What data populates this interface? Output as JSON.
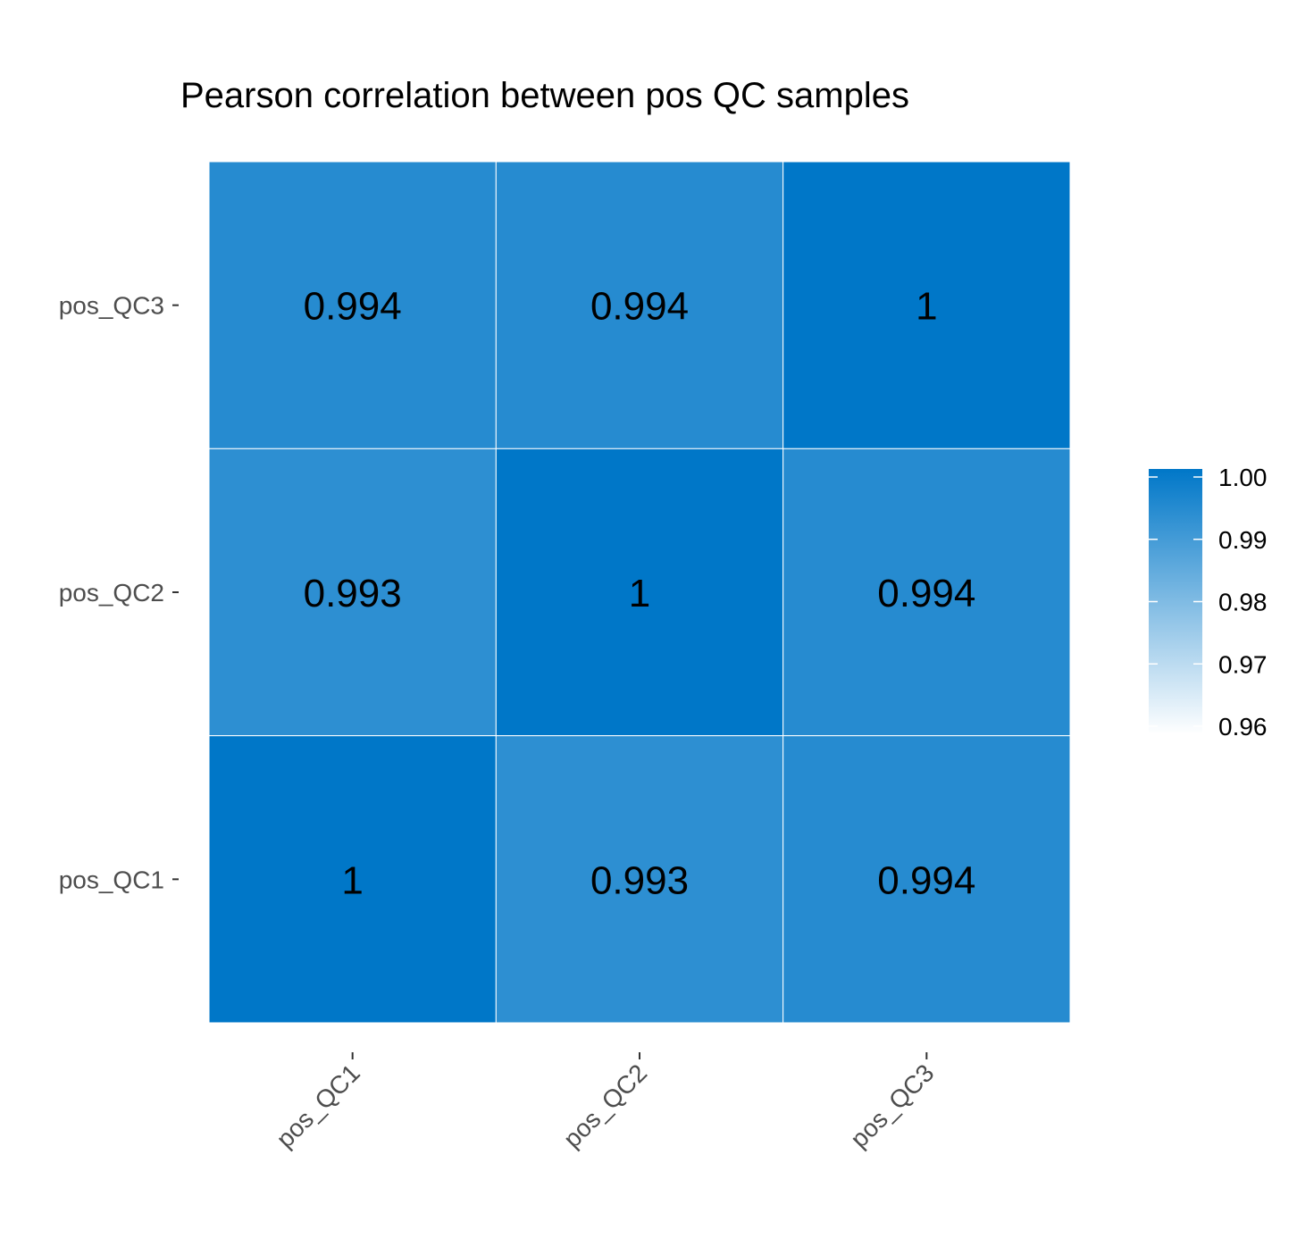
{
  "chart_data": {
    "type": "heatmap",
    "title": "Pearson correlation between pos QC samples",
    "xlabel": "",
    "ylabel": "",
    "x_categories": [
      "pos_QC1",
      "pos_QC2",
      "pos_QC3"
    ],
    "y_categories": [
      "pos_QC1",
      "pos_QC2",
      "pos_QC3"
    ],
    "cells": [
      {
        "x": "pos_QC1",
        "y": "pos_QC3",
        "value": 0.994,
        "label": "0.994"
      },
      {
        "x": "pos_QC2",
        "y": "pos_QC3",
        "value": 0.994,
        "label": "0.994"
      },
      {
        "x": "pos_QC3",
        "y": "pos_QC3",
        "value": 1,
        "label": "1"
      },
      {
        "x": "pos_QC1",
        "y": "pos_QC2",
        "value": 0.993,
        "label": "0.993"
      },
      {
        "x": "pos_QC2",
        "y": "pos_QC2",
        "value": 1,
        "label": "1"
      },
      {
        "x": "pos_QC3",
        "y": "pos_QC2",
        "value": 0.994,
        "label": "0.994"
      },
      {
        "x": "pos_QC1",
        "y": "pos_QC1",
        "value": 1,
        "label": "1"
      },
      {
        "x": "pos_QC2",
        "y": "pos_QC1",
        "value": 0.993,
        "label": "0.993"
      },
      {
        "x": "pos_QC3",
        "y": "pos_QC1",
        "value": 0.994,
        "label": "0.994"
      }
    ],
    "color_scale": {
      "min": 0.96,
      "max": 1.0,
      "low_color": "#ffffff",
      "high_color": "#0077c8",
      "ticks": [
        "1.00",
        "0.99",
        "0.98",
        "0.97",
        "0.96"
      ],
      "tick_values": [
        1.0,
        0.99,
        0.98,
        0.97,
        0.96
      ]
    },
    "grid": false,
    "legend_placement": "right"
  }
}
